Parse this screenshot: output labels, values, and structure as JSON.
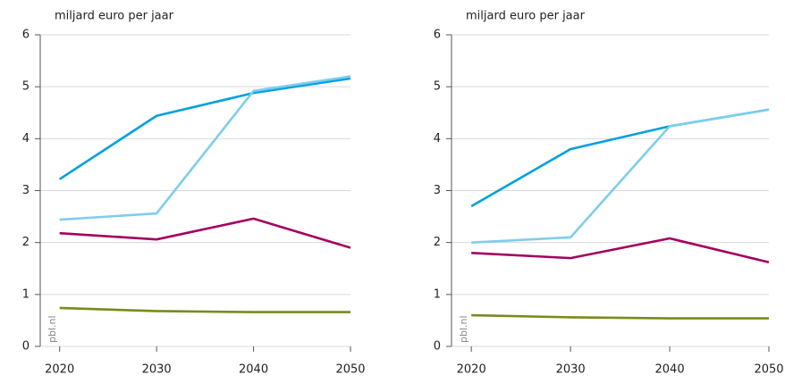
{
  "chart_data": [
    {
      "type": "line",
      "y_label": "miljard euro per jaar",
      "source": "pbl.nl",
      "x": [
        2020,
        2030,
        2040,
        2050
      ],
      "xlim": [
        2018,
        2050
      ],
      "xticks": [
        2020,
        2030,
        2040,
        2050
      ],
      "ylim": [
        0,
        6
      ],
      "yticks": [
        0,
        1,
        2,
        3,
        4,
        5,
        6
      ],
      "grid": true,
      "series": [
        {
          "color": "#00a0e1",
          "values": [
            3.22,
            4.44,
            4.88,
            5.16
          ]
        },
        {
          "color": "#7fcdec",
          "values": [
            2.44,
            2.56,
            4.92,
            5.2
          ]
        },
        {
          "color": "#a3005f",
          "values": [
            2.18,
            2.06,
            2.46,
            1.9
          ]
        },
        {
          "color": "#7a8a19",
          "values": [
            0.74,
            0.68,
            0.66,
            0.66
          ]
        }
      ]
    },
    {
      "type": "line",
      "y_label": "miljard euro per jaar",
      "source": "pbl.nl",
      "x": [
        2020,
        2030,
        2040,
        2050
      ],
      "xlim": [
        2018,
        2050
      ],
      "xticks": [
        2020,
        2030,
        2040,
        2050
      ],
      "ylim": [
        0,
        6
      ],
      "yticks": [
        0,
        1,
        2,
        3,
        4,
        5,
        6
      ],
      "grid": true,
      "series": [
        {
          "color": "#00a0e1",
          "values": [
            2.7,
            3.8,
            4.24,
            4.56
          ]
        },
        {
          "color": "#7fcdec",
          "values": [
            2.0,
            2.1,
            4.24,
            4.56
          ]
        },
        {
          "color": "#a3005f",
          "values": [
            1.8,
            1.7,
            2.08,
            1.62
          ]
        },
        {
          "color": "#7a8a19",
          "values": [
            0.6,
            0.56,
            0.54,
            0.54
          ]
        }
      ]
    }
  ]
}
